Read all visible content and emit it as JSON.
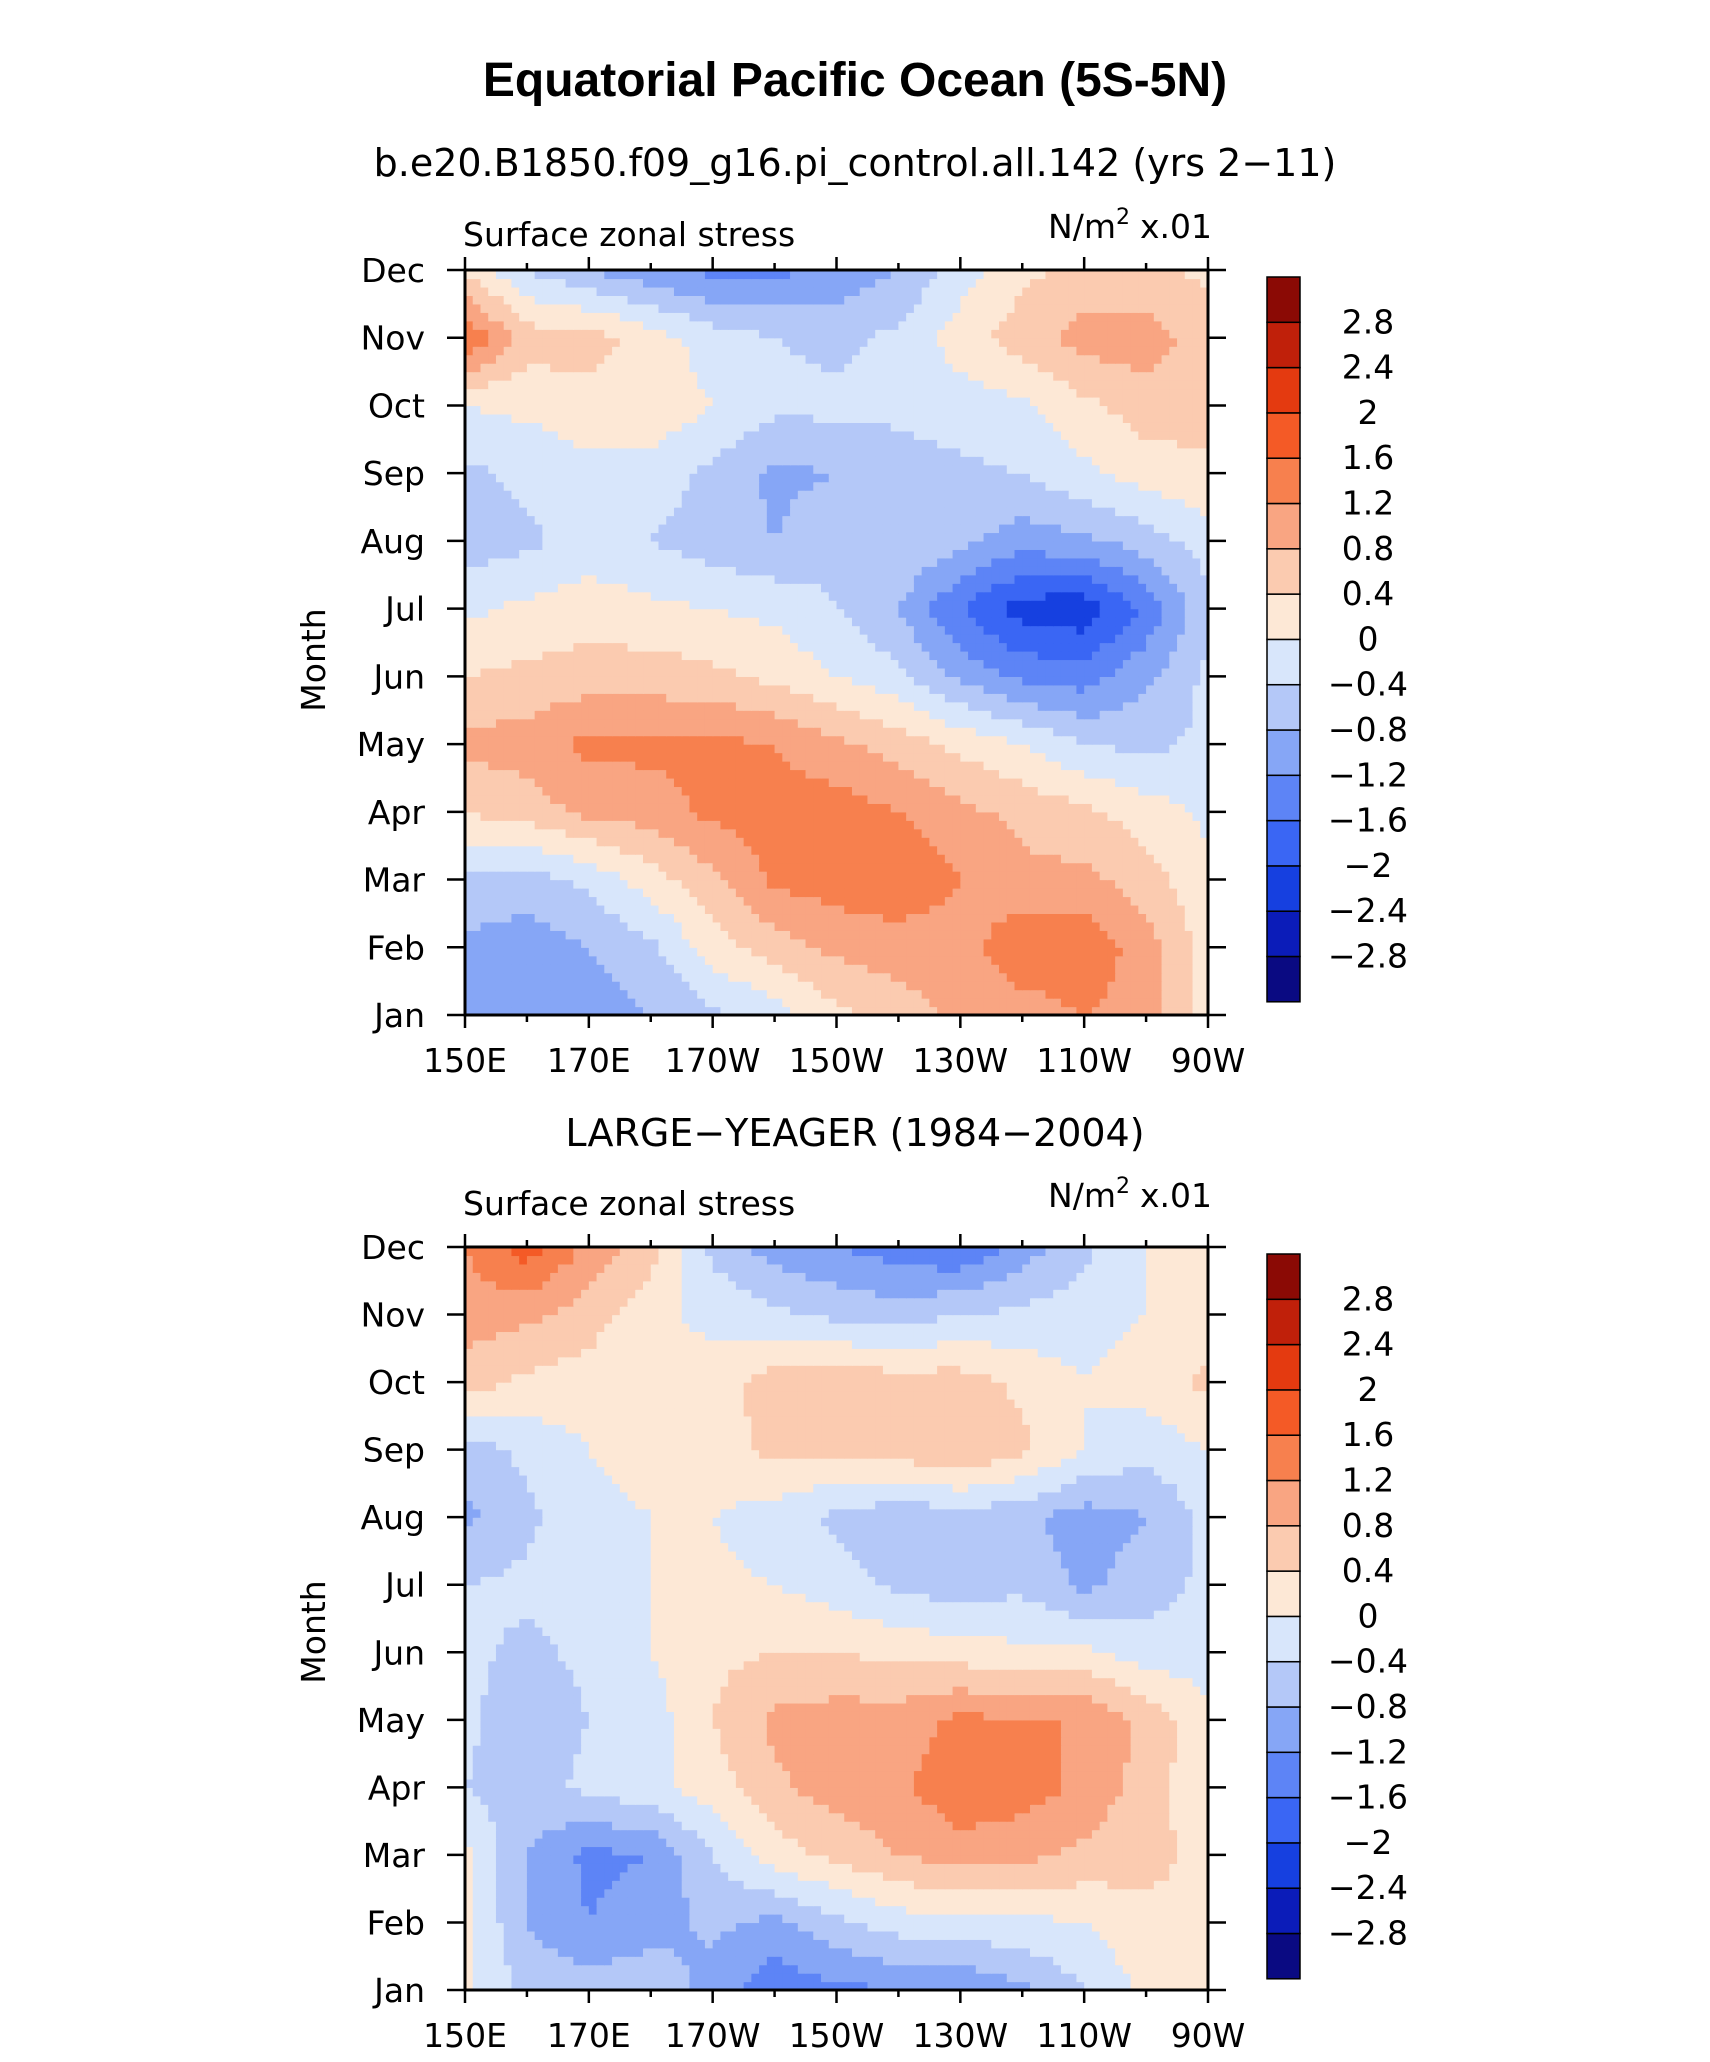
{
  "figure": {
    "title": "Equatorial Pacific Ocean (5S-5N)"
  },
  "chart_data": [
    {
      "type": "heatmap",
      "panel_title": "b.e20.B1850.f09_g16.pi_control.all.142 (yrs 2−11)",
      "left_label": "Surface zonal stress",
      "right_label_base": "N/m",
      "right_label_sup": "2",
      "right_label_scale": "x.01",
      "ylabel": "Month",
      "x_labels": [
        "150E",
        "170E",
        "170W",
        "150W",
        "130W",
        "110W",
        "90W"
      ],
      "x_values": [
        150,
        170,
        190,
        210,
        230,
        250,
        270
      ],
      "y_labels": [
        "Jan",
        "Feb",
        "Mar",
        "Apr",
        "May",
        "Jun",
        "Jul",
        "Aug",
        "Sep",
        "Oct",
        "Nov",
        "Dec"
      ],
      "xlim": [
        150,
        270
      ],
      "ylim": [
        1,
        12
      ],
      "grid": {
        "lons": [
          150,
          160,
          170,
          180,
          190,
          200,
          210,
          220,
          230,
          240,
          250,
          260,
          270
        ],
        "values": [
          [
            -0.9,
            -1.1,
            -1.0,
            -0.8,
            -0.5,
            -0.2,
            0.3,
            0.6,
            0.9,
            1.0,
            1.2,
            1.0,
            0.2
          ],
          [
            -0.9,
            -1.0,
            -0.8,
            -0.5,
            0.2,
            0.6,
            0.9,
            1.0,
            1.0,
            1.5,
            1.5,
            1.0,
            0.2
          ],
          [
            -0.5,
            -0.6,
            -0.3,
            0.2,
            0.7,
            1.3,
            1.4,
            1.5,
            1.2,
            0.9,
            0.9,
            0.6,
            0.1
          ],
          [
            0.4,
            0.6,
            0.9,
            1.0,
            1.3,
            1.4,
            1.4,
            1.2,
            0.9,
            0.7,
            0.5,
            0.2,
            -0.1
          ],
          [
            0.9,
            1.0,
            1.3,
            1.3,
            1.3,
            1.2,
            0.9,
            0.6,
            0.3,
            0.0,
            -0.4,
            -0.5,
            -0.3
          ],
          [
            0.4,
            0.5,
            0.6,
            0.6,
            0.5,
            0.3,
            0.0,
            -0.3,
            -0.9,
            -1.3,
            -1.4,
            -0.9,
            -0.3
          ],
          [
            -0.1,
            0.1,
            0.2,
            0.1,
            0.0,
            -0.1,
            -0.4,
            -0.8,
            -1.6,
            -2.2,
            -2.3,
            -1.5,
            -0.5
          ],
          [
            -0.6,
            -0.5,
            -0.2,
            -0.4,
            -0.6,
            -0.8,
            -0.5,
            -0.4,
            -0.7,
            -1.0,
            -0.9,
            -0.6,
            -0.2
          ],
          [
            -0.5,
            -0.3,
            -0.1,
            -0.2,
            -0.5,
            -0.9,
            -0.8,
            -0.6,
            -0.5,
            -0.4,
            -0.1,
            0.2,
            0.3
          ],
          [
            0.0,
            0.1,
            0.2,
            0.3,
            0.0,
            -0.3,
            -0.3,
            -0.3,
            -0.2,
            -0.1,
            0.3,
            0.6,
            0.6
          ],
          [
            1.6,
            0.6,
            0.6,
            0.2,
            -0.2,
            -0.4,
            -0.5,
            -0.3,
            0.2,
            0.6,
            1.0,
            1.0,
            0.6
          ],
          [
            0.3,
            -0.4,
            -0.8,
            -1.1,
            -1.3,
            -1.3,
            -1.1,
            -0.8,
            -0.2,
            0.3,
            0.5,
            0.5,
            0.3
          ]
        ]
      }
    },
    {
      "type": "heatmap",
      "panel_title": "LARGE−YEAGER (1984−2004)",
      "left_label": "Surface zonal stress",
      "right_label_base": "N/m",
      "right_label_sup": "2",
      "right_label_scale": "x.01",
      "ylabel": "Month",
      "x_labels": [
        "150E",
        "170E",
        "170W",
        "150W",
        "130W",
        "110W",
        "90W"
      ],
      "x_values": [
        150,
        170,
        190,
        210,
        230,
        250,
        270
      ],
      "y_labels": [
        "Jan",
        "Feb",
        "Mar",
        "Apr",
        "May",
        "Jun",
        "Jul",
        "Aug",
        "Sep",
        "Oct",
        "Nov",
        "Dec"
      ],
      "xlim": [
        150,
        270
      ],
      "ylim": [
        1,
        12
      ],
      "grid": {
        "lons": [
          150,
          160,
          170,
          180,
          190,
          200,
          210,
          220,
          230,
          240,
          250,
          260,
          270
        ],
        "values": [
          [
            0.1,
            -0.5,
            -0.6,
            -0.5,
            -1.0,
            -1.5,
            -1.3,
            -1.2,
            -1.2,
            -0.9,
            -0.4,
            0.1,
            0.2
          ],
          [
            0.1,
            -0.8,
            -1.2,
            -1.0,
            -0.7,
            -0.9,
            -0.5,
            -0.2,
            -0.1,
            -0.1,
            0.0,
            0.3,
            0.4
          ],
          [
            0.1,
            -0.8,
            -1.3,
            -1.2,
            -0.4,
            0.2,
            0.5,
            0.8,
            1.0,
            0.9,
            0.7,
            0.5,
            0.3
          ],
          [
            -0.4,
            -0.6,
            -0.3,
            -0.1,
            0.2,
            0.7,
            1.0,
            1.1,
            1.5,
            1.4,
            1.1,
            0.6,
            0.1
          ],
          [
            -0.3,
            -0.7,
            -0.4,
            -0.2,
            0.4,
            0.9,
            1.0,
            1.0,
            1.3,
            1.2,
            1.2,
            0.7,
            0.1
          ],
          [
            -0.3,
            -0.5,
            -0.3,
            0.0,
            0.3,
            0.4,
            0.4,
            0.3,
            0.2,
            0.1,
            0.1,
            -0.2,
            -0.2
          ],
          [
            -0.4,
            -0.3,
            -0.2,
            0.0,
            0.1,
            0.0,
            -0.2,
            -0.5,
            -0.6,
            -0.5,
            -0.9,
            -0.6,
            -0.3
          ],
          [
            -0.9,
            -0.5,
            -0.1,
            0.0,
            0.0,
            -0.2,
            -0.5,
            -0.7,
            -0.6,
            -0.7,
            -1.0,
            -0.8,
            -0.3
          ],
          [
            -0.6,
            -0.3,
            0.0,
            0.1,
            0.2,
            0.5,
            0.5,
            0.6,
            0.8,
            0.5,
            0.0,
            -0.3,
            0.0
          ],
          [
            0.6,
            0.3,
            0.2,
            0.0,
            0.2,
            0.6,
            0.7,
            0.6,
            0.6,
            0.3,
            0.0,
            0.2,
            0.5
          ],
          [
            1.0,
            0.9,
            0.6,
            0.1,
            -0.1,
            -0.3,
            -0.5,
            -0.6,
            -0.4,
            -0.3,
            -0.2,
            0.0,
            0.2
          ],
          [
            1.2,
            1.8,
            1.1,
            0.6,
            -0.5,
            -1.0,
            -1.2,
            -1.4,
            -1.6,
            -1.0,
            -0.5,
            0.0,
            0.1
          ]
        ]
      }
    }
  ],
  "colorbar": {
    "levels": [
      -2.8,
      -2.4,
      -2,
      -1.6,
      -1.2,
      -0.8,
      -0.4,
      0,
      0.4,
      0.8,
      1.2,
      1.6,
      2,
      2.4,
      2.8
    ],
    "level_labels": [
      "−2.8",
      "−2.4",
      "−2",
      "−1.6",
      "−1.2",
      "−0.8",
      "−0.4",
      "0",
      "0.4",
      "0.8",
      "1.2",
      "1.6",
      "2",
      "2.4",
      "2.8"
    ],
    "colors": [
      "#0a0a82",
      "#0b1cb9",
      "#1640e0",
      "#3a66f4",
      "#5d84f6",
      "#86a6f6",
      "#b4c8f8",
      "#d8e6fb",
      "#fde8d6",
      "#fbcbb0",
      "#f9a582",
      "#f7804e",
      "#f45a26",
      "#e43a10",
      "#c0200a",
      "#8b0a05"
    ]
  }
}
